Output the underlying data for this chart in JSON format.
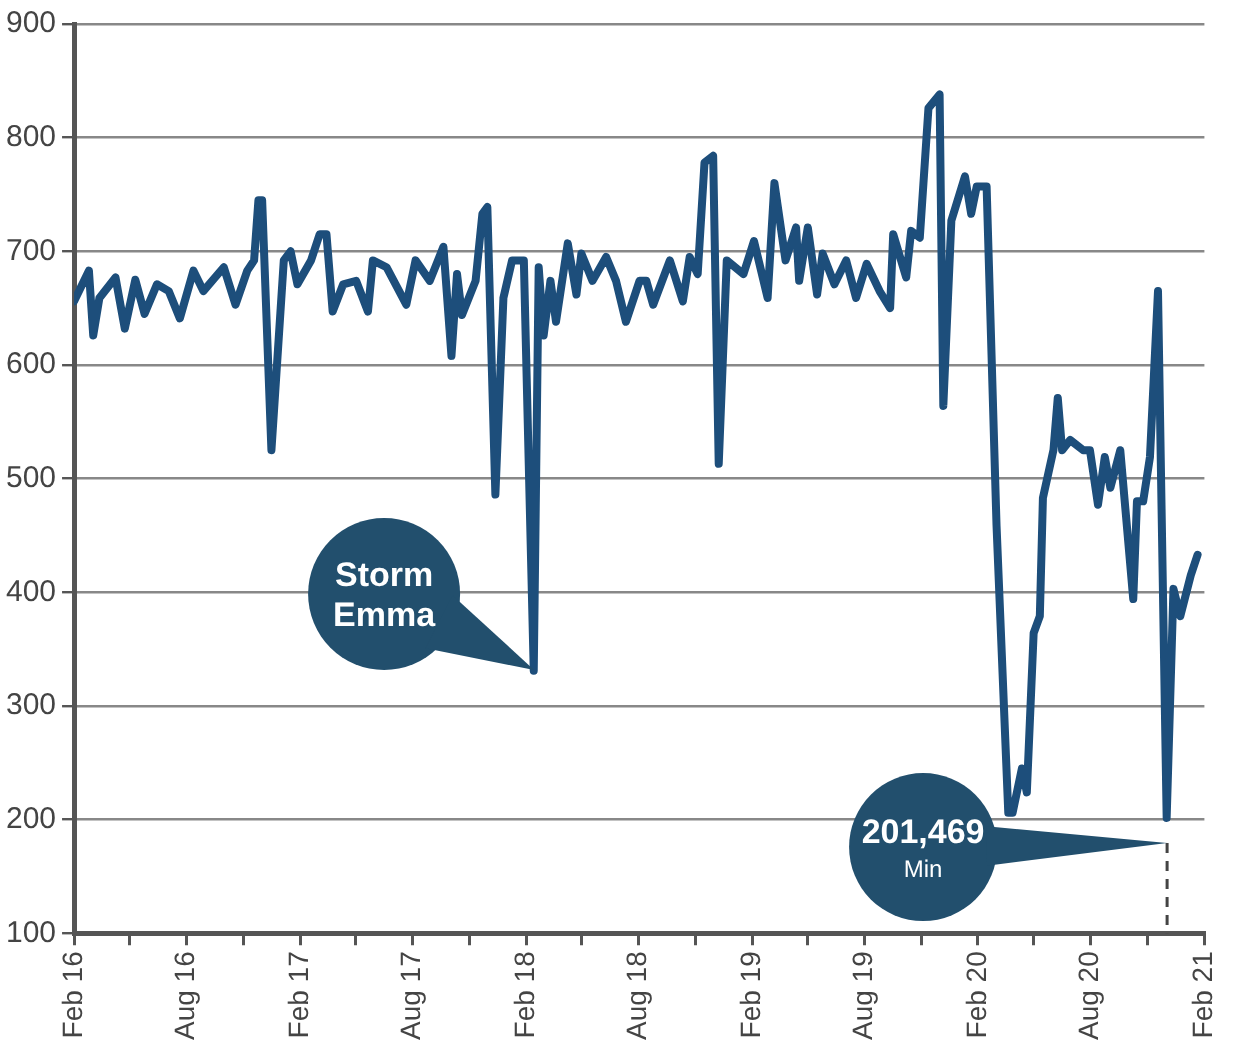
{
  "chart_data": {
    "type": "line",
    "xlim": [
      "2016-02-01",
      "2021-02-01"
    ],
    "xticks": [
      {
        "value": "2016-02-01",
        "label": "Feb 16"
      },
      {
        "value": "2016-05-01",
        "label": null
      },
      {
        "value": "2016-08-01",
        "label": "Aug 16"
      },
      {
        "value": "2016-11-01",
        "label": null
      },
      {
        "value": "2017-02-01",
        "label": "Feb 17"
      },
      {
        "value": "2017-05-01",
        "label": null
      },
      {
        "value": "2017-08-01",
        "label": "Aug 17"
      },
      {
        "value": "2017-11-01",
        "label": null
      },
      {
        "value": "2018-02-01",
        "label": "Feb 18"
      },
      {
        "value": "2018-05-01",
        "label": null
      },
      {
        "value": "2018-08-01",
        "label": "Aug 18"
      },
      {
        "value": "2018-11-01",
        "label": null
      },
      {
        "value": "2019-02-01",
        "label": "Feb 19"
      },
      {
        "value": "2019-05-01",
        "label": null
      },
      {
        "value": "2019-08-01",
        "label": "Aug 19"
      },
      {
        "value": "2019-11-01",
        "label": null
      },
      {
        "value": "2020-02-01",
        "label": "Feb 20"
      },
      {
        "value": "2020-05-01",
        "label": null
      },
      {
        "value": "2020-08-01",
        "label": "Aug 20"
      },
      {
        "value": "2020-11-01",
        "label": null
      },
      {
        "value": "2021-02-01",
        "label": "Feb 21"
      }
    ],
    "ylim": [
      100,
      900
    ],
    "yticks": [
      100,
      200,
      300,
      400,
      500,
      600,
      700,
      800,
      900
    ],
    "grid": "y",
    "legend": false,
    "x": [
      "2016-02-01",
      "2016-02-25",
      "2016-03-03",
      "2016-03-13",
      "2016-04-08",
      "2016-04-23",
      "2016-05-10",
      "2016-05-25",
      "2016-06-14",
      "2016-07-03",
      "2016-07-21",
      "2016-08-12",
      "2016-08-28",
      "2016-09-30",
      "2016-10-19",
      "2016-11-07",
      "2016-11-18",
      "2016-11-25",
      "2016-12-01",
      "2016-12-16",
      "2017-01-05",
      "2017-01-16",
      "2017-01-27",
      "2017-02-18",
      "2017-03-04",
      "2017-03-15",
      "2017-03-25",
      "2017-04-11",
      "2017-05-02",
      "2017-05-21",
      "2017-05-29",
      "2017-06-20",
      "2017-07-22",
      "2017-08-06",
      "2017-08-29",
      "2017-09-20",
      "2017-10-03",
      "2017-10-12",
      "2017-10-20",
      "2017-11-11",
      "2017-11-22",
      "2017-11-30",
      "2017-12-13",
      "2017-12-26",
      "2018-01-09",
      "2018-01-28",
      "2018-02-13",
      "2018-02-21",
      "2018-03-01",
      "2018-03-12",
      "2018-03-21",
      "2018-04-09",
      "2018-04-23",
      "2018-05-01",
      "2018-05-19",
      "2018-06-10",
      "2018-06-26",
      "2018-07-12",
      "2018-08-03",
      "2018-08-14",
      "2018-08-25",
      "2018-09-21",
      "2018-10-12",
      "2018-10-23",
      "2018-11-05",
      "2018-11-16",
      "2018-11-30",
      "2018-12-09",
      "2018-12-22",
      "2019-01-18",
      "2019-02-04",
      "2019-02-26",
      "2019-03-09",
      "2019-03-27",
      "2019-04-13",
      "2019-04-18",
      "2019-05-02",
      "2019-05-17",
      "2019-05-26",
      "2019-06-14",
      "2019-07-03",
      "2019-07-19",
      "2019-08-05",
      "2019-08-26",
      "2019-09-12",
      "2019-09-17",
      "2019-10-08",
      "2019-10-16",
      "2019-10-30",
      "2019-11-13",
      "2019-12-01",
      "2019-12-07",
      "2019-12-20",
      "2020-01-11",
      "2020-01-21",
      "2020-01-30",
      "2020-02-15",
      "2020-03-02",
      "2020-03-21",
      "2020-03-28",
      "2020-04-12",
      "2020-04-20",
      "2020-05-01",
      "2020-05-11",
      "2020-05-16",
      "2020-06-02",
      "2020-06-09",
      "2020-06-16",
      "2020-06-29",
      "2020-07-20",
      "2020-07-31",
      "2020-08-13",
      "2020-08-24",
      "2020-09-02",
      "2020-09-18",
      "2020-10-09",
      "2020-10-15",
      "2020-10-25",
      "2020-11-05",
      "2020-11-18",
      "2020-12-02",
      "2020-12-13",
      "2020-12-24",
      "2021-01-10",
      "2021-01-21"
    ],
    "series": [
      {
        "color": "#1d4e7b",
        "values": [
          656,
          683,
          626,
          659,
          677,
          632,
          675,
          645,
          671,
          665,
          641,
          683,
          665,
          686,
          653,
          683,
          692,
          745,
          745,
          525,
          692,
          700,
          671,
          692,
          715,
          715,
          647,
          671,
          674,
          647,
          692,
          686,
          653,
          692,
          674,
          704,
          608,
          680,
          644,
          674,
          733,
          739,
          486,
          659,
          692,
          692,
          331,
          686,
          626,
          674,
          638,
          707,
          662,
          698,
          674,
          695,
          674,
          638,
          674,
          674,
          653,
          692,
          656,
          695,
          680,
          778,
          784,
          513,
          692,
          680,
          709,
          659,
          760,
          692,
          721,
          674,
          721,
          662,
          698,
          671,
          692,
          659,
          689,
          665,
          650,
          715,
          677,
          718,
          712,
          826,
          838,
          564,
          727,
          766,
          733,
          757,
          757,
          459,
          206,
          206,
          245,
          224,
          364,
          379,
          483,
          525,
          571,
          525,
          534,
          525,
          525,
          477,
          519,
          492,
          525,
          394,
          480,
          480,
          519,
          665,
          201.469,
          403,
          379,
          415,
          433
        ]
      }
    ],
    "annotations": [
      "Storm Emma",
      "201,469",
      "Min"
    ]
  }
}
